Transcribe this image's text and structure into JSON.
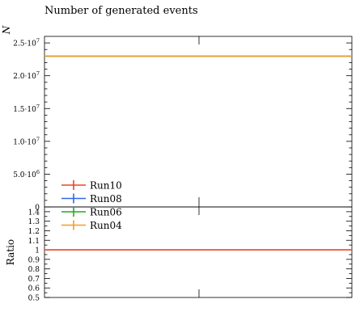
{
  "chart_data": [
    {
      "type": "line",
      "title": "Number of generated events",
      "ylabel": "N",
      "xlabel": "",
      "ylim": [
        0,
        26000000
      ],
      "y_ticks": [
        {
          "value": 0,
          "label": "0"
        },
        {
          "value": 5000000,
          "label": "5.0·10^6"
        },
        {
          "value": 10000000,
          "label": "1.0·10^7"
        },
        {
          "value": 15000000,
          "label": "1.5·10^7"
        },
        {
          "value": 20000000,
          "label": "2.0·10^7"
        },
        {
          "value": 25000000,
          "label": "2.5·10^7"
        }
      ],
      "grid": false,
      "legend_position": "bottom-left",
      "series": [
        {
          "name": "Run10",
          "color": "#EE4422",
          "values": [
            23000000
          ]
        },
        {
          "name": "Run08",
          "color": "#3366EE",
          "values": [
            23000000
          ]
        },
        {
          "name": "Run06",
          "color": "#22AA22",
          "values": [
            23000000
          ]
        },
        {
          "name": "Run04",
          "color": "#F0A020",
          "values": [
            23000000
          ]
        }
      ]
    },
    {
      "type": "line",
      "title": "",
      "ylabel": "Ratio",
      "xlabel": "",
      "ylim": [
        0.5,
        1.45
      ],
      "y_ticks": [
        0.5,
        0.6,
        0.7,
        0.8,
        0.9,
        1.0,
        1.1,
        1.2,
        1.3,
        1.4
      ],
      "y_tick_labels": [
        "0.5",
        "0.6",
        "0.7",
        "0.8",
        "0.9",
        "1",
        "1.1",
        "1.2",
        "1.3",
        "1.4"
      ],
      "series": [
        {
          "name": "Run10",
          "color": "#EE4422",
          "values": [
            1.0
          ]
        }
      ]
    }
  ]
}
